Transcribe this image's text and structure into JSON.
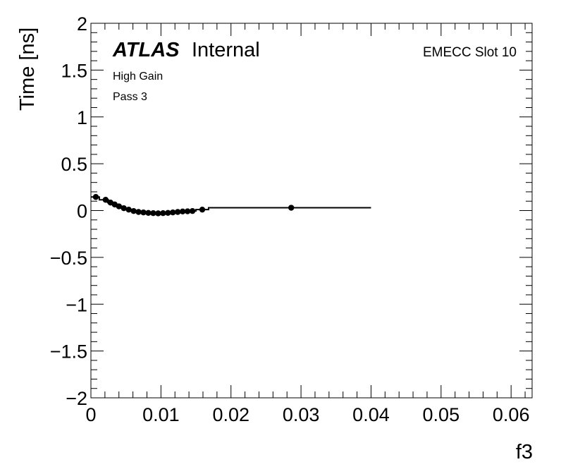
{
  "chart_data": {
    "type": "scatter",
    "title": "",
    "xlabel": "f3",
    "ylabel": "Time [ns]",
    "xlim": [
      0,
      0.063
    ],
    "ylim": [
      -2,
      2
    ],
    "grid": false,
    "annotations": {
      "experiment": "ATLAS",
      "status": "Internal",
      "slot": "EMECC Slot 10",
      "gain": "High Gain",
      "pass": "Pass 3"
    },
    "x_ticks": [
      {
        "value": 0,
        "label": "0"
      },
      {
        "value": 0.01,
        "label": "0.01"
      },
      {
        "value": 0.02,
        "label": "0.02"
      },
      {
        "value": 0.03,
        "label": "0.03"
      },
      {
        "value": 0.04,
        "label": "0.04"
      },
      {
        "value": 0.05,
        "label": "0.05"
      },
      {
        "value": 0.06,
        "label": "0.06"
      }
    ],
    "y_ticks": [
      {
        "value": 2,
        "label": "2"
      },
      {
        "value": 1.5,
        "label": "1.5"
      },
      {
        "value": 1,
        "label": "1"
      },
      {
        "value": 0.5,
        "label": "0.5"
      },
      {
        "value": 0,
        "label": "0"
      },
      {
        "value": -0.5,
        "label": "−0.5"
      },
      {
        "value": -1,
        "label": "−1"
      },
      {
        "value": -1.5,
        "label": "−1.5"
      },
      {
        "value": -2,
        "label": "−2"
      }
    ],
    "points": [
      {
        "x": 0.0007,
        "y": 0.145,
        "err": 0.02
      },
      {
        "x": 0.0021,
        "y": 0.115,
        "err": 0.03
      },
      {
        "x": 0.0028,
        "y": 0.085,
        "err": 0.03
      },
      {
        "x": 0.0034,
        "y": 0.065,
        "err": 0.03
      },
      {
        "x": 0.004,
        "y": 0.045,
        "err": 0.025
      },
      {
        "x": 0.0047,
        "y": 0.025,
        "err": 0.025
      },
      {
        "x": 0.0054,
        "y": 0.01,
        "err": 0.02
      },
      {
        "x": 0.0061,
        "y": -0.005,
        "err": 0.02
      },
      {
        "x": 0.0068,
        "y": -0.015,
        "err": 0.02
      },
      {
        "x": 0.0075,
        "y": -0.02,
        "err": 0.02
      },
      {
        "x": 0.0082,
        "y": -0.025,
        "err": 0.02
      },
      {
        "x": 0.0089,
        "y": -0.028,
        "err": 0.02
      },
      {
        "x": 0.0096,
        "y": -0.03,
        "err": 0.02
      },
      {
        "x": 0.0103,
        "y": -0.028,
        "err": 0.02
      },
      {
        "x": 0.011,
        "y": -0.025,
        "err": 0.02
      },
      {
        "x": 0.0117,
        "y": -0.02,
        "err": 0.02
      },
      {
        "x": 0.0124,
        "y": -0.015,
        "err": 0.02
      },
      {
        "x": 0.0131,
        "y": -0.01,
        "err": 0.02
      },
      {
        "x": 0.0138,
        "y": -0.008,
        "err": 0.015
      },
      {
        "x": 0.0145,
        "y": -0.005,
        "err": 0.015
      },
      {
        "x": 0.0159,
        "y": 0.01,
        "err": 0.015
      },
      {
        "x": 0.0286,
        "y": 0.03,
        "err": 0.01
      }
    ],
    "step_line": [
      {
        "x0": 0.0,
        "x1": 0.0012,
        "y": 0.145
      },
      {
        "x0": 0.0012,
        "x1": 0.0024,
        "y": 0.115
      },
      {
        "x0": 0.0024,
        "x1": 0.0031,
        "y": 0.085
      },
      {
        "x0": 0.0031,
        "x1": 0.0037,
        "y": 0.065
      },
      {
        "x0": 0.0037,
        "x1": 0.0044,
        "y": 0.045
      },
      {
        "x0": 0.0044,
        "x1": 0.005,
        "y": 0.025
      },
      {
        "x0": 0.005,
        "x1": 0.0057,
        "y": 0.01
      },
      {
        "x0": 0.0057,
        "x1": 0.0064,
        "y": -0.005
      },
      {
        "x0": 0.0064,
        "x1": 0.0071,
        "y": -0.015
      },
      {
        "x0": 0.0071,
        "x1": 0.0078,
        "y": -0.02
      },
      {
        "x0": 0.0078,
        "x1": 0.0085,
        "y": -0.025
      },
      {
        "x0": 0.0085,
        "x1": 0.0092,
        "y": -0.028
      },
      {
        "x0": 0.0092,
        "x1": 0.0099,
        "y": -0.03
      },
      {
        "x0": 0.0099,
        "x1": 0.0106,
        "y": -0.028
      },
      {
        "x0": 0.0106,
        "x1": 0.0113,
        "y": -0.025
      },
      {
        "x0": 0.0113,
        "x1": 0.012,
        "y": -0.02
      },
      {
        "x0": 0.012,
        "x1": 0.0127,
        "y": -0.015
      },
      {
        "x0": 0.0127,
        "x1": 0.0134,
        "y": -0.01
      },
      {
        "x0": 0.0134,
        "x1": 0.0141,
        "y": -0.008
      },
      {
        "x0": 0.0141,
        "x1": 0.015,
        "y": -0.005
      },
      {
        "x0": 0.015,
        "x1": 0.0168,
        "y": 0.01
      },
      {
        "x0": 0.0168,
        "x1": 0.04,
        "y": 0.03
      }
    ]
  }
}
